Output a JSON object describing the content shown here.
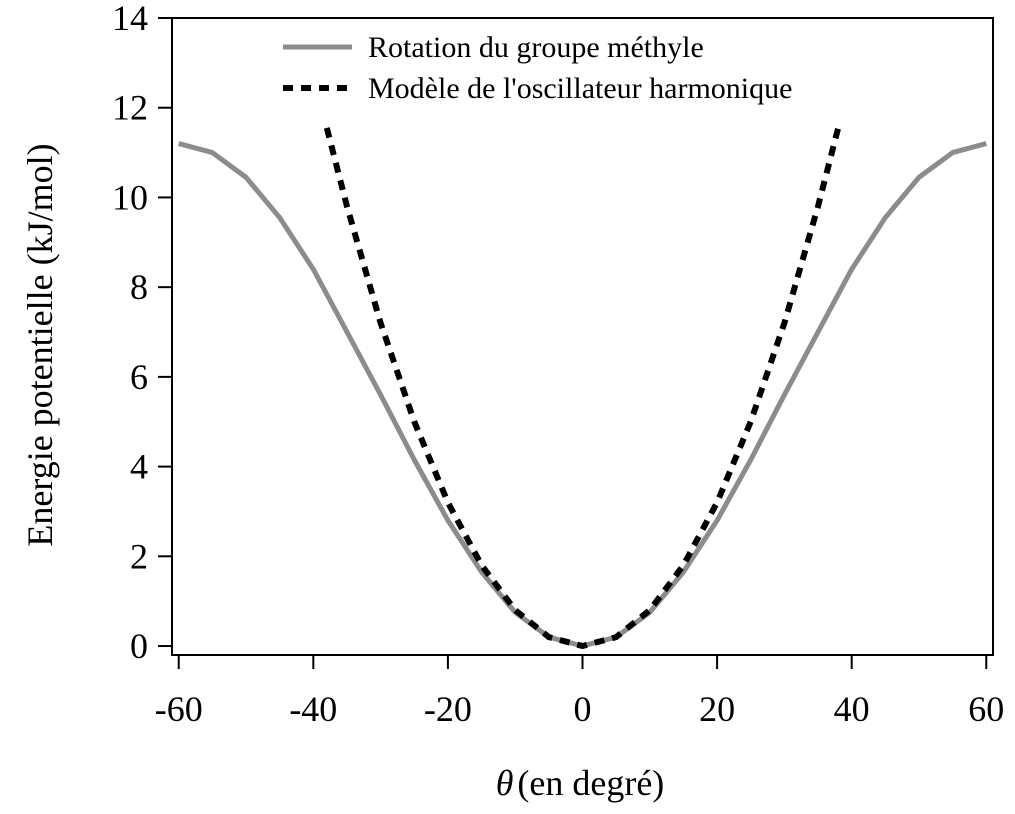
{
  "chart_data": {
    "type": "line",
    "title": "",
    "xlabel_symbol": "θ",
    "xlabel_text": "(en degré)",
    "ylabel": "Energie potentielle (kJ/mol)",
    "xlim": [
      -61,
      61
    ],
    "ylim": [
      -0.2,
      14
    ],
    "xticks": [
      -60,
      -40,
      -20,
      0,
      20,
      40,
      60
    ],
    "yticks": [
      0,
      2,
      4,
      6,
      8,
      10,
      12,
      14
    ],
    "grid": false,
    "legend_position": "top",
    "series": [
      {
        "name": "Rotation du groupe méthyle",
        "style": "solid",
        "color": "#8c8c8c",
        "x": [
          -60,
          -55,
          -50,
          -45,
          -40,
          -35,
          -30,
          -25,
          -20,
          -15,
          -10,
          -5,
          0,
          5,
          10,
          15,
          20,
          25,
          30,
          35,
          40,
          45,
          50,
          55,
          60
        ],
        "y": [
          11.2,
          11.0,
          10.45,
          9.55,
          8.4,
          7.0,
          5.6,
          4.15,
          2.8,
          1.65,
          0.75,
          0.2,
          0.0,
          0.2,
          0.75,
          1.65,
          2.8,
          4.15,
          5.6,
          7.0,
          8.4,
          9.55,
          10.45,
          11.0,
          11.2
        ]
      },
      {
        "name": "Modèle de l'oscillateur harmonique",
        "style": "dotted",
        "color": "#000000",
        "x": [
          -38,
          -35,
          -30,
          -25,
          -20,
          -15,
          -10,
          -5,
          0,
          5,
          10,
          15,
          20,
          25,
          30,
          35,
          38
        ],
        "y": [
          11.55,
          9.8,
          7.2,
          5.0,
          3.2,
          1.8,
          0.8,
          0.2,
          0.0,
          0.2,
          0.8,
          1.8,
          3.2,
          5.0,
          7.2,
          9.8,
          11.55
        ]
      }
    ]
  }
}
